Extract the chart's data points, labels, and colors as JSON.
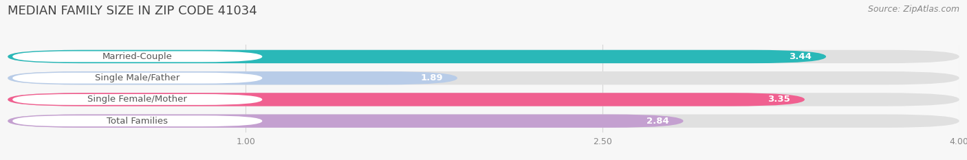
{
  "title": "MEDIAN FAMILY SIZE IN ZIP CODE 41034",
  "source": "Source: ZipAtlas.com",
  "categories": [
    "Married-Couple",
    "Single Male/Father",
    "Single Female/Mother",
    "Total Families"
  ],
  "values": [
    3.44,
    1.89,
    3.35,
    2.84
  ],
  "bar_colors": [
    "#2ab8b8",
    "#b8cce8",
    "#f06090",
    "#c4a0d0"
  ],
  "bar_bg_color": "#e0e0e0",
  "label_bg_color": "#ffffff",
  "xlim_min": 0,
  "xlim_max": 4.0,
  "xticks": [
    1.0,
    2.5,
    4.0
  ],
  "bar_height": 0.62,
  "label_color": "#555555",
  "value_color": "#ffffff",
  "title_fontsize": 13,
  "source_fontsize": 9,
  "label_fontsize": 9.5,
  "value_fontsize": 9.5,
  "tick_fontsize": 9,
  "bg_color": "#f7f7f7",
  "grid_color": "#d5d5d5"
}
